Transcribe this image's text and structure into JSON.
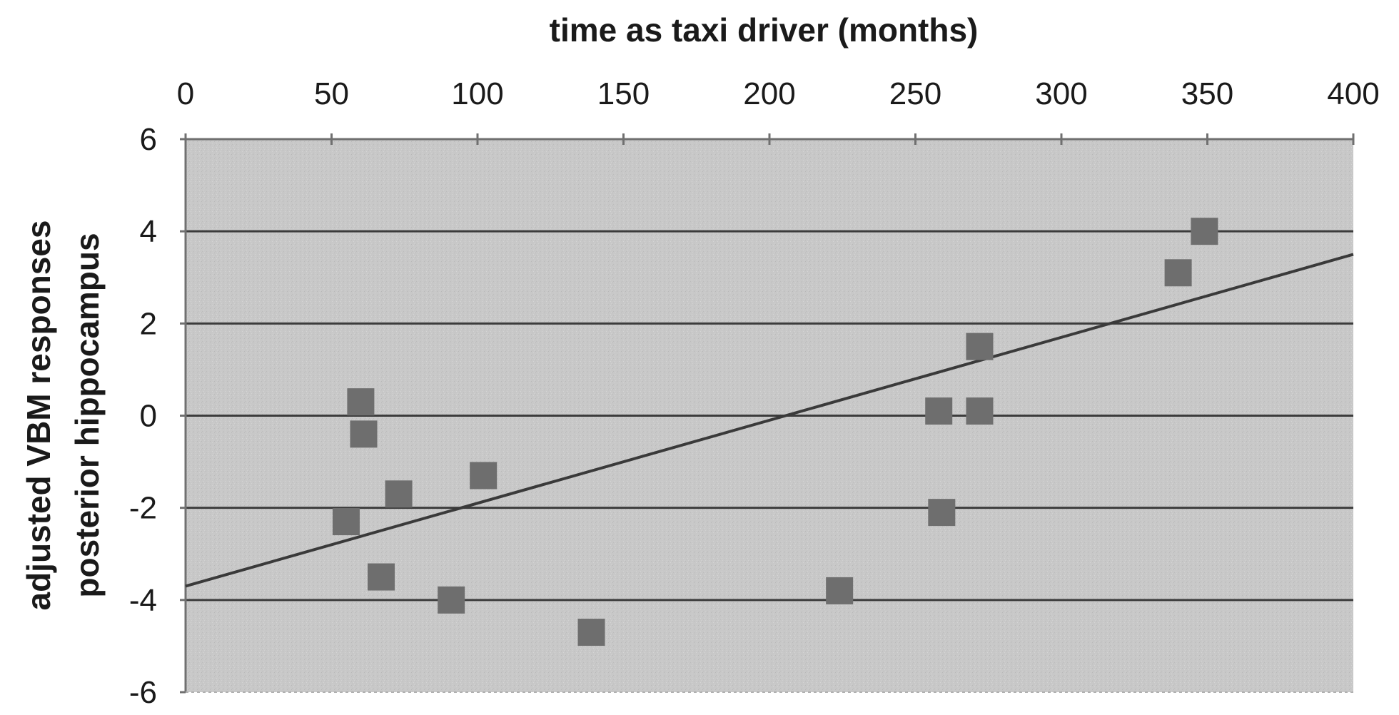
{
  "chart_data": {
    "type": "scatter",
    "title": "",
    "xlabel": "time as taxi driver (months)",
    "ylabel": [
      "adjusted VBM responses",
      "posterior hippocampus"
    ],
    "xlim": [
      0,
      400
    ],
    "ylim": [
      -6,
      6
    ],
    "x_ticks": [
      0,
      50,
      100,
      150,
      200,
      250,
      300,
      350,
      400
    ],
    "y_ticks": [
      6,
      4,
      2,
      0,
      -2,
      -4,
      -6
    ],
    "x_axis_position": "top",
    "grid": "horizontal",
    "background": "#c8c8c8",
    "marker_color": "#6e6e6e",
    "line_color": "#3a3a3a",
    "points": [
      {
        "x": 55,
        "y": -2.3
      },
      {
        "x": 60,
        "y": 0.3
      },
      {
        "x": 61,
        "y": -0.4
      },
      {
        "x": 67,
        "y": -3.5
      },
      {
        "x": 73,
        "y": -1.7
      },
      {
        "x": 91,
        "y": -4.0
      },
      {
        "x": 102,
        "y": -1.3
      },
      {
        "x": 139,
        "y": -4.7
      },
      {
        "x": 224,
        "y": -3.8
      },
      {
        "x": 258,
        "y": 0.1
      },
      {
        "x": 259,
        "y": -2.1
      },
      {
        "x": 272,
        "y": 1.5
      },
      {
        "x": 272,
        "y": 0.1
      },
      {
        "x": 340,
        "y": 3.1
      },
      {
        "x": 349,
        "y": 4.0
      }
    ],
    "trendline": {
      "x": [
        0,
        400
      ],
      "y": [
        -3.7,
        3.5
      ]
    }
  }
}
